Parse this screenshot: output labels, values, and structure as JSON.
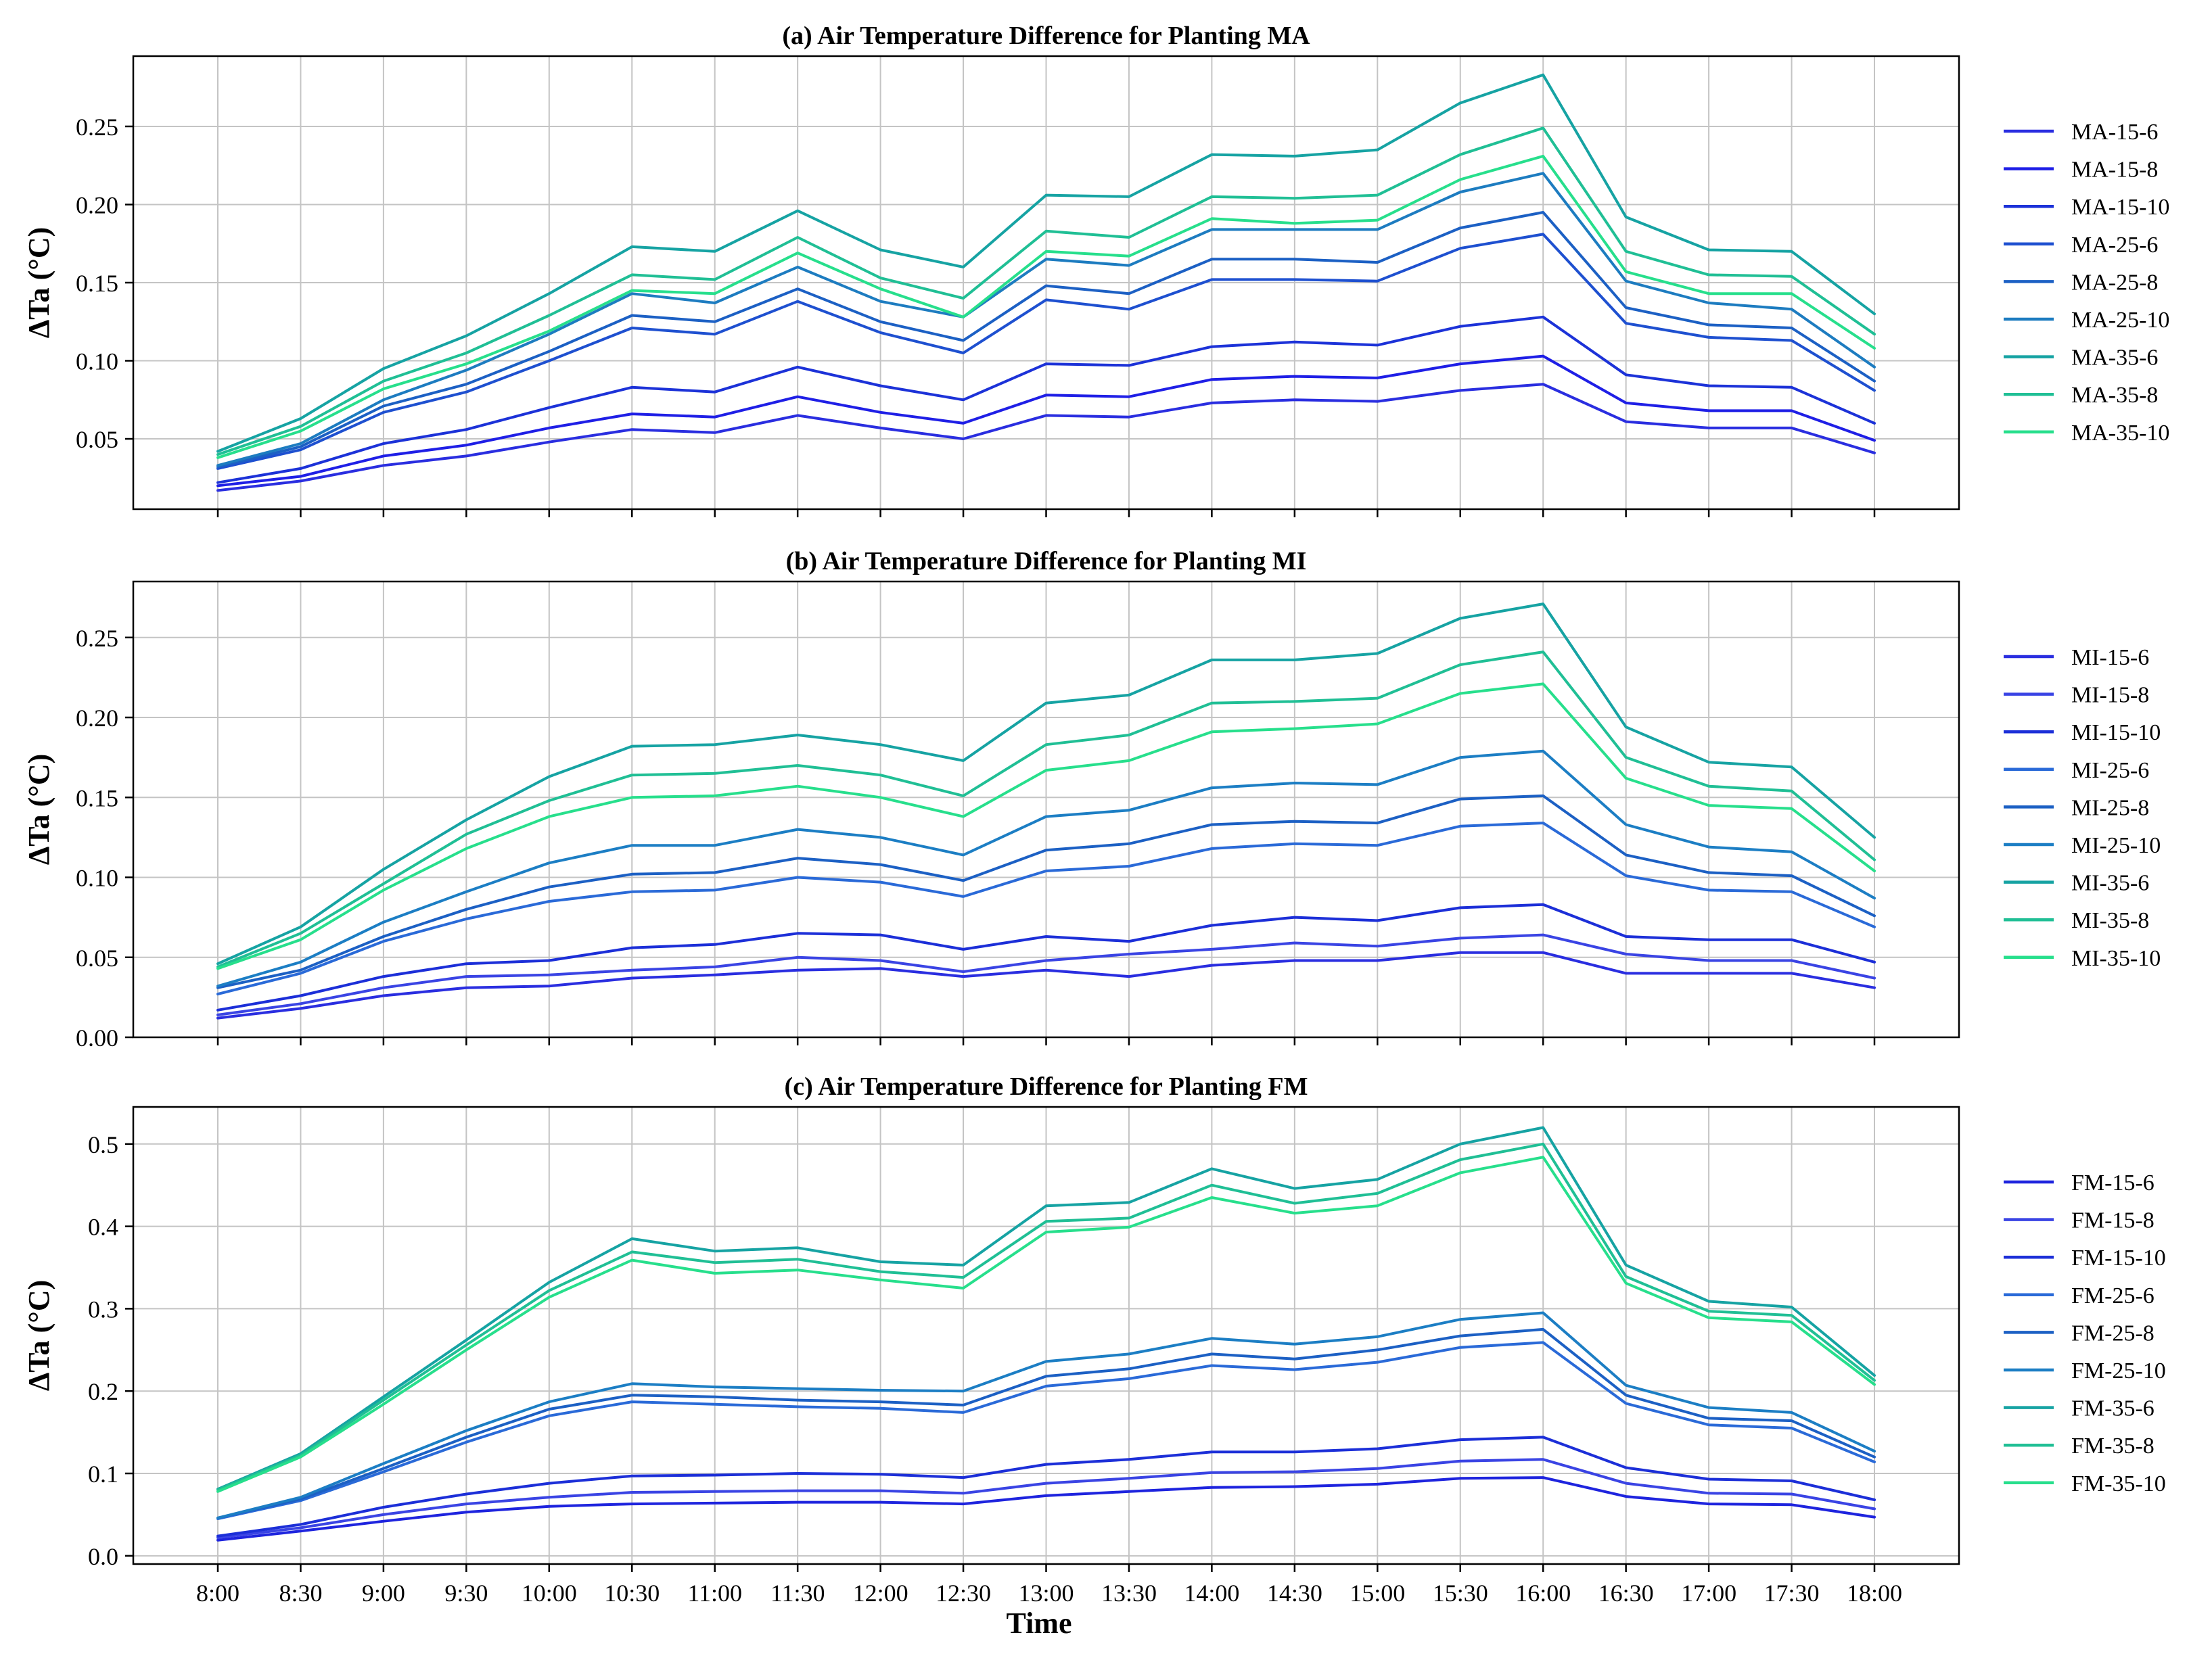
{
  "figure": {
    "xlabel": "Time",
    "ylabel": "ΔTa (°C)"
  },
  "chart_data": [
    {
      "type": "line",
      "title": "(a) Air Temperature Difference for Planting MA",
      "xlabel": "",
      "ylabel": "ΔTa (°C)",
      "ylim": [
        0.005,
        0.295
      ],
      "yticks": [
        0.05,
        0.1,
        0.15,
        0.2,
        0.25
      ],
      "ytick_labels": [
        "0.05",
        "0.10",
        "0.15",
        "0.20",
        "0.25"
      ],
      "grid": true,
      "legend_position": "right",
      "categories": [
        "8:00",
        "8:30",
        "9:00",
        "9:30",
        "10:00",
        "10:30",
        "11:00",
        "11:30",
        "12:00",
        "12:30",
        "13:00",
        "13:30",
        "14:00",
        "14:30",
        "15:00",
        "15:30",
        "16:00",
        "16:30",
        "17:00",
        "17:30",
        "18:00"
      ],
      "series": [
        {
          "name": "MA-15-6",
          "color": "#2a2ee0",
          "values": [
            0.017,
            0.023,
            0.033,
            0.039,
            0.048,
            0.056,
            0.054,
            0.065,
            0.057,
            0.05,
            0.065,
            0.064,
            0.073,
            0.075,
            0.074,
            0.081,
            0.085,
            0.061,
            0.057,
            0.057,
            0.041
          ]
        },
        {
          "name": "MA-15-8",
          "color": "#1f1fe6",
          "values": [
            0.02,
            0.026,
            0.039,
            0.046,
            0.057,
            0.066,
            0.064,
            0.077,
            0.067,
            0.06,
            0.078,
            0.077,
            0.088,
            0.09,
            0.089,
            0.098,
            0.103,
            0.073,
            0.068,
            0.068,
            0.049
          ]
        },
        {
          "name": "MA-15-10",
          "color": "#1c32d8",
          "values": [
            0.022,
            0.031,
            0.047,
            0.056,
            0.07,
            0.083,
            0.08,
            0.096,
            0.084,
            0.075,
            0.098,
            0.097,
            0.109,
            0.112,
            0.11,
            0.122,
            0.128,
            0.091,
            0.084,
            0.083,
            0.06
          ]
        },
        {
          "name": "MA-25-6",
          "color": "#1e50d0",
          "values": [
            0.031,
            0.043,
            0.067,
            0.08,
            0.1,
            0.121,
            0.117,
            0.138,
            0.118,
            0.105,
            0.139,
            0.133,
            0.152,
            0.152,
            0.151,
            0.172,
            0.181,
            0.124,
            0.115,
            0.113,
            0.081
          ]
        },
        {
          "name": "MA-25-8",
          "color": "#1c60c4",
          "values": [
            0.032,
            0.045,
            0.071,
            0.085,
            0.106,
            0.129,
            0.125,
            0.146,
            0.125,
            0.113,
            0.148,
            0.143,
            0.165,
            0.165,
            0.163,
            0.185,
            0.195,
            0.134,
            0.123,
            0.121,
            0.087
          ]
        },
        {
          "name": "MA-25-10",
          "color": "#1d7cc0",
          "values": [
            0.033,
            0.047,
            0.075,
            0.094,
            0.117,
            0.143,
            0.137,
            0.16,
            0.138,
            0.128,
            0.165,
            0.161,
            0.184,
            0.184,
            0.184,
            0.208,
            0.22,
            0.151,
            0.137,
            0.133,
            0.096
          ]
        },
        {
          "name": "MA-35-6",
          "color": "#16a3a3",
          "values": [
            0.042,
            0.063,
            0.095,
            0.116,
            0.143,
            0.173,
            0.17,
            0.196,
            0.171,
            0.16,
            0.206,
            0.205,
            0.232,
            0.231,
            0.235,
            0.265,
            0.283,
            0.192,
            0.171,
            0.17,
            0.13
          ]
        },
        {
          "name": "MA-35-8",
          "color": "#20bf95",
          "values": [
            0.04,
            0.058,
            0.087,
            0.105,
            0.129,
            0.155,
            0.152,
            0.179,
            0.153,
            0.14,
            0.183,
            0.179,
            0.205,
            0.204,
            0.206,
            0.232,
            0.249,
            0.17,
            0.155,
            0.154,
            0.117
          ]
        },
        {
          "name": "MA-35-10",
          "color": "#27df8c",
          "values": [
            0.038,
            0.055,
            0.082,
            0.098,
            0.119,
            0.145,
            0.143,
            0.169,
            0.146,
            0.128,
            0.17,
            0.167,
            0.191,
            0.188,
            0.19,
            0.216,
            0.231,
            0.157,
            0.143,
            0.143,
            0.108
          ]
        }
      ]
    },
    {
      "type": "line",
      "title": "(b) Air Temperature Difference for Planting MI",
      "xlabel": "",
      "ylabel": "ΔTa (°C)",
      "ylim": [
        0.0,
        0.285
      ],
      "yticks": [
        0.0,
        0.05,
        0.1,
        0.15,
        0.2,
        0.25
      ],
      "ytick_labels": [
        "0.00",
        "0.05",
        "0.10",
        "0.15",
        "0.20",
        "0.25"
      ],
      "grid": true,
      "legend_position": "right",
      "categories": [
        "8:00",
        "8:30",
        "9:00",
        "9:30",
        "10:00",
        "10:30",
        "11:00",
        "11:30",
        "12:00",
        "12:30",
        "13:00",
        "13:30",
        "14:00",
        "14:30",
        "15:00",
        "15:30",
        "16:00",
        "16:30",
        "17:00",
        "17:30",
        "18:00"
      ],
      "series": [
        {
          "name": "MI-15-6",
          "color": "#2a2ee0",
          "values": [
            0.012,
            0.018,
            0.026,
            0.031,
            0.032,
            0.037,
            0.039,
            0.042,
            0.043,
            0.038,
            0.042,
            0.038,
            0.045,
            0.048,
            0.048,
            0.053,
            0.053,
            0.04,
            0.04,
            0.04,
            0.031
          ]
        },
        {
          "name": "MI-15-8",
          "color": "#3a44e4",
          "values": [
            0.014,
            0.021,
            0.031,
            0.038,
            0.039,
            0.042,
            0.044,
            0.05,
            0.048,
            0.041,
            0.048,
            0.052,
            0.055,
            0.059,
            0.057,
            0.062,
            0.064,
            0.052,
            0.048,
            0.048,
            0.037
          ]
        },
        {
          "name": "MI-15-10",
          "color": "#1c2fd8",
          "values": [
            0.017,
            0.026,
            0.038,
            0.046,
            0.048,
            0.056,
            0.058,
            0.065,
            0.064,
            0.055,
            0.063,
            0.06,
            0.07,
            0.075,
            0.073,
            0.081,
            0.083,
            0.063,
            0.061,
            0.061,
            0.047
          ]
        },
        {
          "name": "MI-25-6",
          "color": "#2a6ad8",
          "values": [
            0.027,
            0.04,
            0.06,
            0.074,
            0.085,
            0.091,
            0.092,
            0.1,
            0.097,
            0.088,
            0.104,
            0.107,
            0.118,
            0.121,
            0.12,
            0.132,
            0.134,
            0.101,
            0.092,
            0.091,
            0.069
          ]
        },
        {
          "name": "MI-25-8",
          "color": "#1c60c4",
          "values": [
            0.031,
            0.042,
            0.063,
            0.08,
            0.094,
            0.102,
            0.103,
            0.112,
            0.108,
            0.098,
            0.117,
            0.121,
            0.133,
            0.135,
            0.134,
            0.149,
            0.151,
            0.114,
            0.103,
            0.101,
            0.076
          ]
        },
        {
          "name": "MI-25-10",
          "color": "#1c7ec4",
          "values": [
            0.032,
            0.047,
            0.072,
            0.091,
            0.109,
            0.12,
            0.12,
            0.13,
            0.125,
            0.114,
            0.138,
            0.142,
            0.156,
            0.159,
            0.158,
            0.175,
            0.179,
            0.133,
            0.119,
            0.116,
            0.087
          ]
        },
        {
          "name": "MI-35-6",
          "color": "#16a3a3",
          "values": [
            0.046,
            0.069,
            0.105,
            0.136,
            0.163,
            0.182,
            0.183,
            0.189,
            0.183,
            0.173,
            0.209,
            0.214,
            0.236,
            0.236,
            0.24,
            0.262,
            0.271,
            0.194,
            0.172,
            0.169,
            0.125
          ]
        },
        {
          "name": "MI-35-8",
          "color": "#20bf95",
          "values": [
            0.044,
            0.065,
            0.096,
            0.127,
            0.148,
            0.164,
            0.165,
            0.17,
            0.164,
            0.151,
            0.183,
            0.189,
            0.209,
            0.21,
            0.212,
            0.233,
            0.241,
            0.175,
            0.157,
            0.154,
            0.111
          ]
        },
        {
          "name": "MI-35-10",
          "color": "#27df8c",
          "values": [
            0.043,
            0.061,
            0.092,
            0.118,
            0.138,
            0.15,
            0.151,
            0.157,
            0.15,
            0.138,
            0.167,
            0.173,
            0.191,
            0.193,
            0.196,
            0.215,
            0.221,
            0.162,
            0.145,
            0.143,
            0.104
          ]
        }
      ]
    },
    {
      "type": "line",
      "title": "(c) Air Temperature Difference for Planting FM",
      "xlabel": "Time",
      "ylabel": "ΔTa (°C)",
      "ylim": [
        -0.01,
        0.545
      ],
      "yticks": [
        0.0,
        0.1,
        0.2,
        0.3,
        0.4,
        0.5
      ],
      "ytick_labels": [
        "0.0",
        "0.1",
        "0.2",
        "0.3",
        "0.4",
        "0.5"
      ],
      "grid": true,
      "legend_position": "right",
      "categories": [
        "8:00",
        "8:30",
        "9:00",
        "9:30",
        "10:00",
        "10:30",
        "11:00",
        "11:30",
        "12:00",
        "12:30",
        "13:00",
        "13:30",
        "14:00",
        "14:30",
        "15:00",
        "15:30",
        "16:00",
        "16:30",
        "17:00",
        "17:30",
        "18:00"
      ],
      "series": [
        {
          "name": "FM-15-6",
          "color": "#1e24de",
          "values": [
            0.019,
            0.03,
            0.042,
            0.053,
            0.06,
            0.063,
            0.064,
            0.065,
            0.065,
            0.063,
            0.073,
            0.078,
            0.083,
            0.084,
            0.087,
            0.094,
            0.095,
            0.072,
            0.063,
            0.062,
            0.047
          ]
        },
        {
          "name": "FM-15-8",
          "color": "#3a44e4",
          "values": [
            0.022,
            0.034,
            0.05,
            0.063,
            0.071,
            0.077,
            0.078,
            0.079,
            0.079,
            0.076,
            0.088,
            0.094,
            0.101,
            0.102,
            0.106,
            0.115,
            0.117,
            0.088,
            0.076,
            0.075,
            0.057
          ]
        },
        {
          "name": "FM-15-10",
          "color": "#1c2fd8",
          "values": [
            0.024,
            0.038,
            0.059,
            0.075,
            0.088,
            0.097,
            0.098,
            0.1,
            0.099,
            0.095,
            0.111,
            0.117,
            0.126,
            0.126,
            0.13,
            0.141,
            0.144,
            0.107,
            0.093,
            0.091,
            0.068
          ]
        },
        {
          "name": "FM-25-6",
          "color": "#2a6ad8",
          "values": [
            0.045,
            0.067,
            0.102,
            0.138,
            0.17,
            0.187,
            0.184,
            0.181,
            0.179,
            0.174,
            0.206,
            0.215,
            0.231,
            0.226,
            0.235,
            0.253,
            0.259,
            0.185,
            0.159,
            0.155,
            0.114
          ]
        },
        {
          "name": "FM-25-8",
          "color": "#1c60c4",
          "values": [
            0.046,
            0.069,
            0.106,
            0.144,
            0.178,
            0.195,
            0.193,
            0.189,
            0.187,
            0.183,
            0.218,
            0.227,
            0.245,
            0.239,
            0.25,
            0.267,
            0.275,
            0.195,
            0.167,
            0.164,
            0.12
          ]
        },
        {
          "name": "FM-25-10",
          "color": "#1c7ec4",
          "values": [
            0.046,
            0.071,
            0.112,
            0.152,
            0.187,
            0.209,
            0.205,
            0.203,
            0.201,
            0.2,
            0.236,
            0.245,
            0.264,
            0.257,
            0.266,
            0.287,
            0.295,
            0.207,
            0.18,
            0.174,
            0.127
          ]
        },
        {
          "name": "FM-35-6",
          "color": "#16a3a3",
          "values": [
            0.081,
            0.124,
            0.193,
            0.262,
            0.332,
            0.385,
            0.37,
            0.374,
            0.357,
            0.353,
            0.425,
            0.429,
            0.47,
            0.446,
            0.457,
            0.5,
            0.52,
            0.353,
            0.309,
            0.302,
            0.219
          ]
        },
        {
          "name": "FM-35-8",
          "color": "#20bf95",
          "values": [
            0.08,
            0.122,
            0.189,
            0.256,
            0.322,
            0.369,
            0.356,
            0.36,
            0.345,
            0.338,
            0.406,
            0.41,
            0.45,
            0.428,
            0.44,
            0.481,
            0.5,
            0.339,
            0.297,
            0.292,
            0.213
          ]
        },
        {
          "name": "FM-35-10",
          "color": "#27df8c",
          "values": [
            0.078,
            0.12,
            0.184,
            0.25,
            0.314,
            0.359,
            0.343,
            0.347,
            0.335,
            0.325,
            0.393,
            0.399,
            0.435,
            0.416,
            0.425,
            0.465,
            0.484,
            0.331,
            0.289,
            0.284,
            0.208
          ]
        }
      ]
    }
  ]
}
